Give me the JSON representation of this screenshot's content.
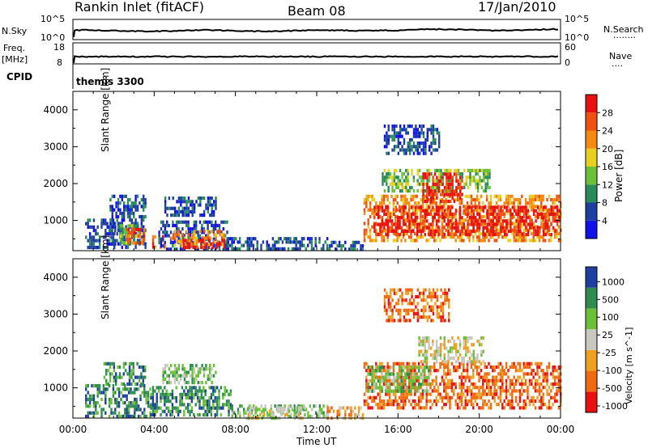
{
  "header": {
    "title": "Rankin Inlet (fitACF)",
    "beam": "Beam 08",
    "date": "17/Jan/2010"
  },
  "nsky_panel": {
    "left_label": "N.Sky",
    "right_label": "N.Search",
    "right_dots": "........",
    "left_ticks": [
      "10^5",
      "10^0"
    ],
    "right_ticks": [
      "10^5",
      "10^0"
    ]
  },
  "freq_panel": {
    "left_label_1": "Freq.",
    "left_label_2": "[MHz]",
    "right_label": "Nave",
    "right_dots": "....",
    "left_ticks": [
      "18",
      "8"
    ],
    "right_ticks": [
      "60",
      "0"
    ]
  },
  "cpid_panel": {
    "left_label": "CPID",
    "value": "themis 3300"
  },
  "colors": {
    "power": [
      "#1010e8",
      "#1f3fa0",
      "#2a8a5a",
      "#6bc03a",
      "#e8d020",
      "#f58a10",
      "#f05010",
      "#e81010"
    ],
    "velocity": [
      "#e81010",
      "#f26a10",
      "#f0a020",
      "#c8c8c0",
      "#6bc03a",
      "#2e8c50",
      "#1f3fa0"
    ]
  },
  "chart_data": [
    {
      "type": "heatmap",
      "name": "Power",
      "ylabel": "Slant Range [km]",
      "ytick_labels": [
        "1000",
        "2000",
        "3000",
        "4000"
      ],
      "ylim": [
        180,
        4500
      ],
      "xlim_hours": [
        0,
        24
      ],
      "colorbar": {
        "label": "Power [dB]",
        "tick_labels": [
          "4",
          "8",
          "12",
          "16",
          "20",
          "24",
          "28"
        ],
        "range": [
          0,
          32
        ]
      },
      "regions": [
        {
          "t0": 0.6,
          "t1": 2.2,
          "r0": 300,
          "r1": 1050,
          "level": 1
        },
        {
          "t0": 1.8,
          "t1": 3.6,
          "r0": 300,
          "r1": 1700,
          "level": 1
        },
        {
          "t0": 2.3,
          "t1": 3.2,
          "r0": 400,
          "r1": 900,
          "level": 3
        },
        {
          "t0": 2.6,
          "t1": 3.5,
          "r0": 400,
          "r1": 800,
          "level": 6
        },
        {
          "t0": 3.9,
          "t1": 4.5,
          "r0": 250,
          "r1": 600,
          "level": 6
        },
        {
          "t0": 4.2,
          "t1": 7.6,
          "r0": 250,
          "r1": 1000,
          "level": 1
        },
        {
          "t0": 4.5,
          "t1": 7.0,
          "r0": 1150,
          "r1": 1650,
          "level": 1
        },
        {
          "t0": 4.8,
          "t1": 7.4,
          "r0": 300,
          "r1": 750,
          "level": 5
        },
        {
          "t0": 5.4,
          "t1": 7.5,
          "r0": 250,
          "r1": 500,
          "level": 7
        },
        {
          "t0": 7.5,
          "t1": 12.5,
          "r0": 200,
          "r1": 550,
          "level": 1
        },
        {
          "t0": 12.5,
          "t1": 14.3,
          "r0": 200,
          "r1": 450,
          "level": 1
        },
        {
          "t0": 14.3,
          "t1": 24.0,
          "r0": 450,
          "r1": 1700,
          "level": 5
        },
        {
          "t0": 14.8,
          "t1": 23.9,
          "r0": 600,
          "r1": 1400,
          "level": 7
        },
        {
          "t0": 15.2,
          "t1": 20.5,
          "r0": 1800,
          "r1": 2400,
          "level": 3
        },
        {
          "t0": 17.2,
          "t1": 19.2,
          "r0": 1500,
          "r1": 2300,
          "level": 7
        },
        {
          "t0": 15.3,
          "t1": 18.0,
          "r0": 2800,
          "r1": 3600,
          "level": 1
        }
      ]
    },
    {
      "type": "heatmap",
      "name": "Velocity",
      "ylabel": "Slant Range [km]",
      "xlabel": "Time UT",
      "xtick_labels": [
        "00:00",
        "04:00",
        "08:00",
        "12:00",
        "16:00",
        "20:00",
        "00:00"
      ],
      "ytick_labels": [
        "1000",
        "2000",
        "3000",
        "4000"
      ],
      "ylim": [
        180,
        4500
      ],
      "xlim_hours": [
        0,
        24
      ],
      "colorbar": {
        "label": "Velocity [m s^-1]",
        "tick_labels": [
          "-1000",
          "-500",
          "-100",
          "-25",
          "25",
          "100",
          "500",
          "1000"
        ]
      },
      "regions": [
        {
          "t0": 0.6,
          "t1": 3.8,
          "r0": 250,
          "r1": 1100,
          "level": 5
        },
        {
          "t0": 1.5,
          "t1": 3.6,
          "r0": 1100,
          "r1": 1700,
          "level": 5
        },
        {
          "t0": 3.8,
          "t1": 7.8,
          "r0": 250,
          "r1": 1050,
          "level": 5
        },
        {
          "t0": 4.4,
          "t1": 7.0,
          "r0": 1150,
          "r1": 1650,
          "level": 4
        },
        {
          "t0": 7.8,
          "t1": 12.5,
          "r0": 200,
          "r1": 550,
          "level": 4
        },
        {
          "t0": 8.5,
          "t1": 11.5,
          "r0": 200,
          "r1": 500,
          "level": 3
        },
        {
          "t0": 12.5,
          "t1": 14.3,
          "r0": 200,
          "r1": 500,
          "level": 2
        },
        {
          "t0": 14.3,
          "t1": 24.0,
          "r0": 450,
          "r1": 1700,
          "level": 1
        },
        {
          "t0": 14.5,
          "t1": 17.5,
          "r0": 900,
          "r1": 1600,
          "level": 4
        },
        {
          "t0": 17.0,
          "t1": 20.2,
          "r0": 1700,
          "r1": 2400,
          "level": 3
        },
        {
          "t0": 15.3,
          "t1": 18.5,
          "r0": 2800,
          "r1": 3700,
          "level": 1
        }
      ]
    }
  ]
}
